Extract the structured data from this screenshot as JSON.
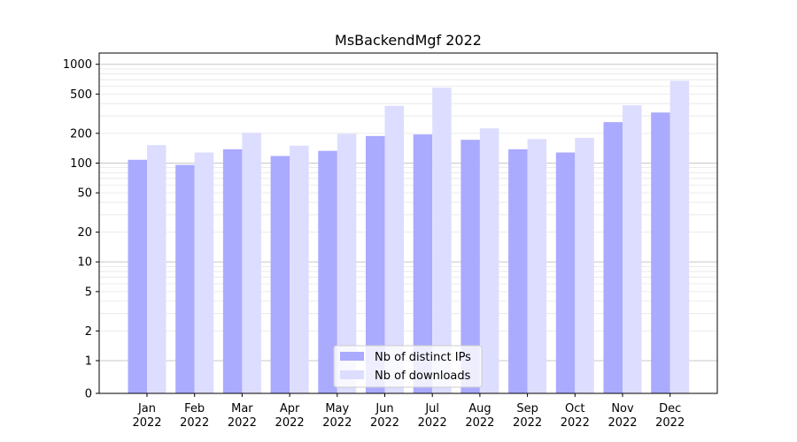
{
  "chart_data": {
    "type": "bar",
    "title": "MsBackendMgf 2022",
    "xlabel": "",
    "ylabel": "",
    "yscale": "symlog",
    "ylim": [
      0,
      1300
    ],
    "yticks": [
      0,
      1,
      2,
      5,
      10,
      20,
      50,
      100,
      200,
      500,
      1000
    ],
    "ytick_labels": [
      "0",
      "1",
      "2",
      "5",
      "10",
      "20",
      "50",
      "100",
      "200",
      "500",
      "1000"
    ],
    "grid": true,
    "legend_position": "bottom-center",
    "categories": [
      {
        "month": "Jan",
        "year": "2022"
      },
      {
        "month": "Feb",
        "year": "2022"
      },
      {
        "month": "Mar",
        "year": "2022"
      },
      {
        "month": "Apr",
        "year": "2022"
      },
      {
        "month": "May",
        "year": "2022"
      },
      {
        "month": "Jun",
        "year": "2022"
      },
      {
        "month": "Jul",
        "year": "2022"
      },
      {
        "month": "Aug",
        "year": "2022"
      },
      {
        "month": "Sep",
        "year": "2022"
      },
      {
        "month": "Oct",
        "year": "2022"
      },
      {
        "month": "Nov",
        "year": "2022"
      },
      {
        "month": "Dec",
        "year": "2022"
      }
    ],
    "series": [
      {
        "name": "Nb of distinct IPs",
        "color": "#aaaaff",
        "values": [
          108,
          96,
          138,
          118,
          133,
          188,
          195,
          172,
          138,
          128,
          260,
          325
        ]
      },
      {
        "name": "Nb of downloads",
        "color": "#ddddff",
        "values": [
          152,
          128,
          203,
          150,
          198,
          380,
          580,
          225,
          175,
          180,
          385,
          680
        ]
      }
    ]
  }
}
